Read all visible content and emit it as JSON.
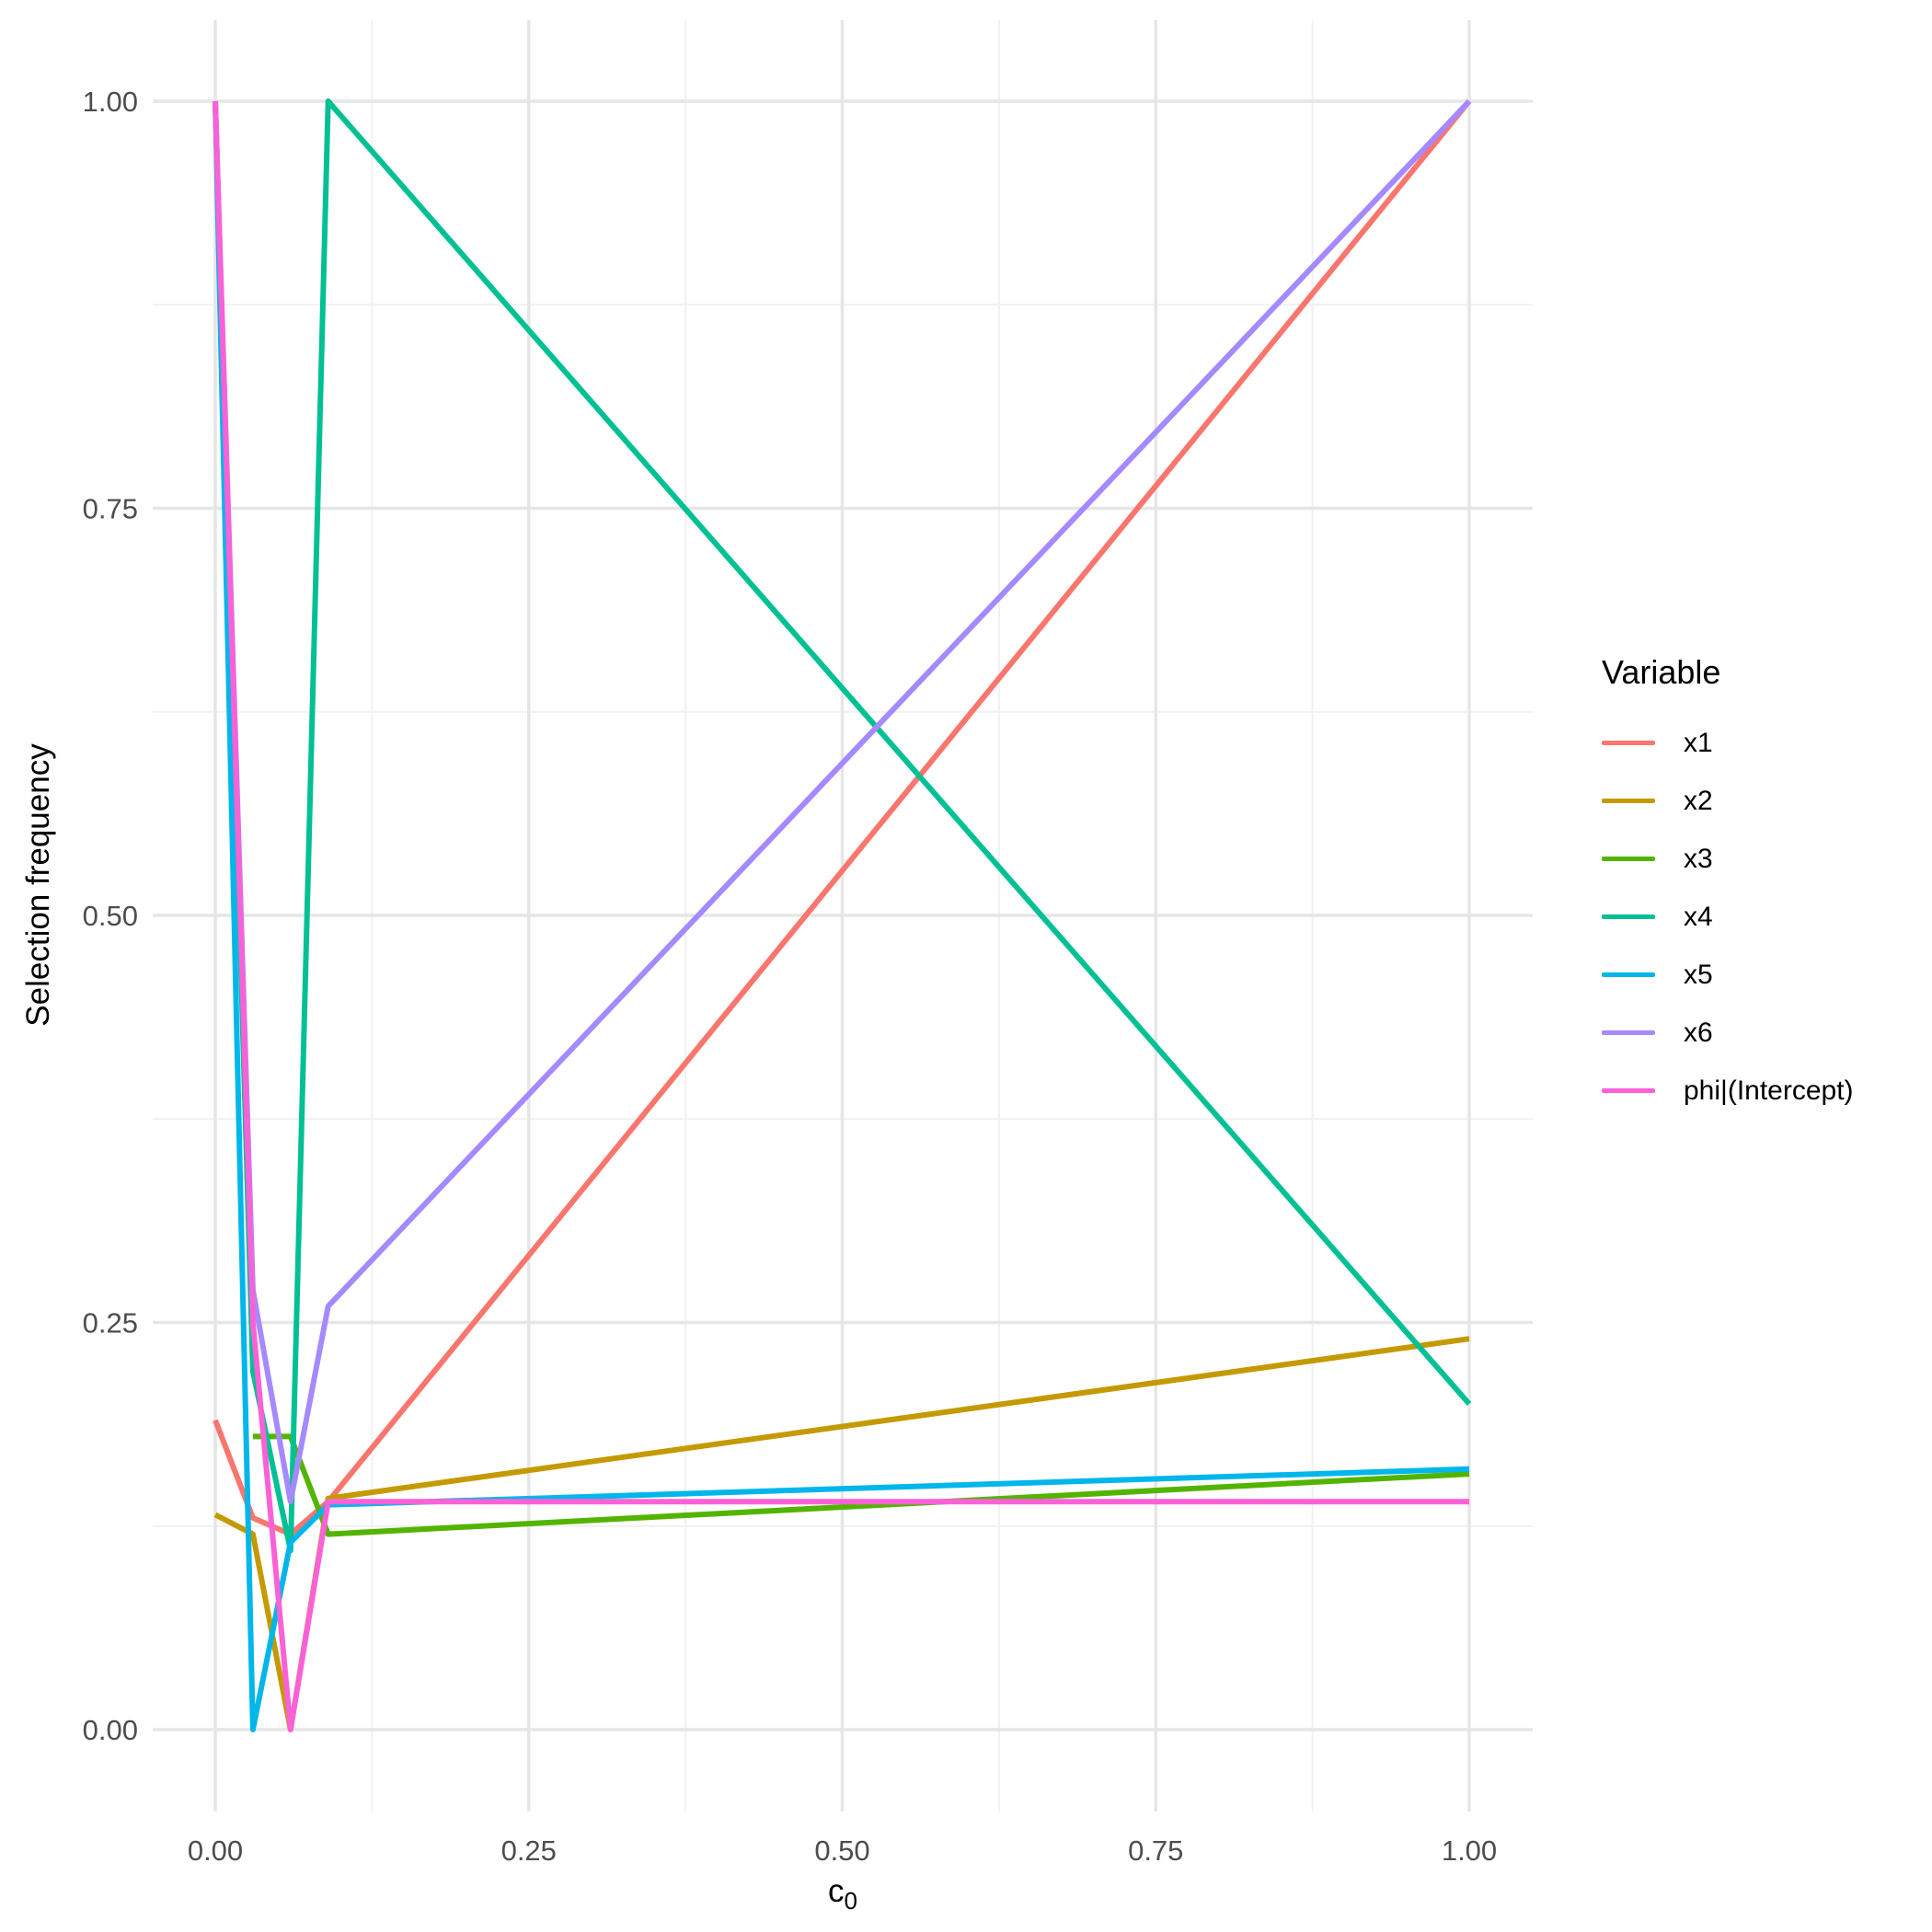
{
  "chart_data": {
    "type": "line",
    "title": "",
    "xlabel_base": "c",
    "xlabel_sub": "0",
    "ylabel": "Selection frequency",
    "xlim": [
      0,
      1
    ],
    "ylim": [
      0,
      1
    ],
    "grid": "major+minor",
    "x_ticks": {
      "values": [
        0,
        0.25,
        0.5,
        0.75,
        1.0
      ],
      "labels": [
        "0.00",
        "0.25",
        "0.50",
        "0.75",
        "1.00"
      ]
    },
    "y_ticks": {
      "values": [
        0,
        0.25,
        0.5,
        0.75,
        1.0
      ],
      "labels": [
        "0.00",
        "0.25",
        "0.50",
        "0.75",
        "1.00"
      ]
    },
    "x_minor_ticks": [
      0.125,
      0.375,
      0.625,
      0.875
    ],
    "y_minor_ticks": [
      0.125,
      0.375,
      0.625,
      0.875
    ],
    "legend": {
      "title": "Variable",
      "position": "right"
    },
    "series": [
      {
        "name": "x1",
        "color": "#F8766D",
        "points": [
          [
            0,
            0.19
          ],
          [
            0.03,
            0.13
          ],
          [
            0.06,
            0.12
          ],
          [
            0.09,
            0.14
          ],
          [
            1,
            1.0
          ]
        ]
      },
      {
        "name": "x2",
        "color": "#C49A00",
        "points": [
          [
            0,
            0.132
          ],
          [
            0.03,
            0.12
          ],
          [
            0.06,
            0.0
          ],
          [
            0.09,
            0.142
          ],
          [
            1,
            0.24
          ]
        ]
      },
      {
        "name": "x3",
        "color": "#53B400",
        "points": [
          [
            0.03,
            0.18
          ],
          [
            0.06,
            0.18
          ],
          [
            0.09,
            0.12
          ],
          [
            1,
            0.157
          ]
        ]
      },
      {
        "name": "x4",
        "color": "#00C094",
        "points": [
          [
            0,
            1.0
          ],
          [
            0.03,
            0.22
          ],
          [
            0.06,
            0.11
          ],
          [
            0.09,
            1.0
          ],
          [
            1,
            0.2
          ]
        ]
      },
      {
        "name": "x5",
        "color": "#00B6EB",
        "points": [
          [
            0,
            1.0
          ],
          [
            0.03,
            0.0
          ],
          [
            0.06,
            0.115
          ],
          [
            0.09,
            0.138
          ],
          [
            1,
            0.16
          ]
        ]
      },
      {
        "name": "x6",
        "color": "#A58AFF",
        "points": [
          [
            0,
            1.0
          ],
          [
            0.03,
            0.27
          ],
          [
            0.06,
            0.14
          ],
          [
            0.09,
            0.26
          ],
          [
            1,
            1.0
          ]
        ]
      },
      {
        "name": "phi|(Intercept)",
        "color": "#FB61D7",
        "points": [
          [
            0,
            1.0
          ],
          [
            0.03,
            0.25
          ],
          [
            0.06,
            0.0
          ],
          [
            0.09,
            0.14
          ],
          [
            1,
            0.14
          ]
        ]
      }
    ],
    "style": {
      "grid_major_color": "#E6E6E6",
      "grid_minor_color": "#F1F1F1",
      "tick_label_color": "#4D4D4D",
      "background": "#FFFFFF"
    }
  }
}
